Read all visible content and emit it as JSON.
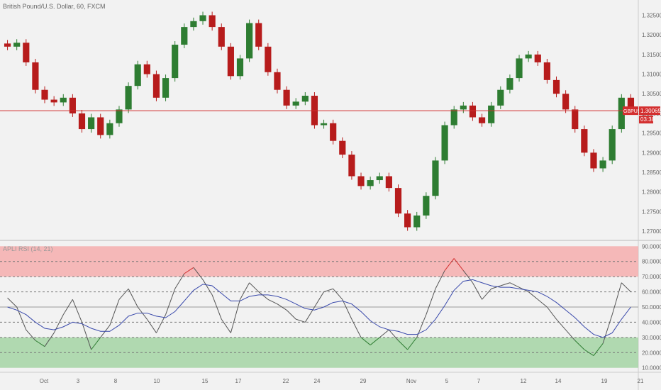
{
  "header": {
    "symbol_title": "British Pound/U.S. Dollar, 60, FXCM"
  },
  "price_tag": {
    "symbol": "GBPUSD",
    "price": "1.30069",
    "countdown": "03:38"
  },
  "rsi_panel": {
    "title": "APLI RSI (14, 21)"
  },
  "colors": {
    "background": "#f2f2f2",
    "up_candle": "#2e7d32",
    "down_candle": "#b71c1c",
    "price_line": "#d32f2f",
    "rsi_line": "#555555",
    "rsi_ma": "#3949ab",
    "overbought_zone": "#f5a9a9",
    "oversold_zone": "#a9d6a9",
    "overbought_line": "#d32f2f",
    "oversold_line": "#2e7d32"
  },
  "chart_data": [
    {
      "type": "line",
      "title": "British Pound/U.S. Dollar, 60, FXCM",
      "xlabel": "",
      "ylabel": "",
      "x_ticks": [
        "Oct",
        "3",
        "8",
        "10",
        "15",
        "17",
        "22",
        "24",
        "29",
        "Nov",
        "5",
        "7",
        "12",
        "14",
        "19",
        "21"
      ],
      "y_ticks": [
        "1.32500",
        "1.32000",
        "1.31500",
        "1.31000",
        "1.30500",
        "1.30000",
        "1.29500",
        "1.29000",
        "1.28500",
        "1.28000",
        "1.27500",
        "1.27000"
      ],
      "ylim": [
        1.2682,
        1.3278
      ],
      "last_price": 1.30069,
      "series": [
        {
          "values": [
            1.317,
            1.318,
            1.313,
            1.306,
            1.3035,
            1.3028,
            1.304,
            1.3,
            1.296,
            1.299,
            1.2945,
            1.2975,
            1.301,
            1.307,
            1.3125,
            1.31,
            1.304,
            1.309,
            1.3175,
            1.322,
            1.3235,
            1.325,
            1.322,
            1.317,
            1.3095,
            1.314,
            1.323,
            1.317,
            1.3105,
            1.306,
            1.302,
            1.303,
            1.3045,
            1.297,
            1.2975,
            1.293,
            1.2895,
            1.284,
            1.2815,
            1.283,
            1.284,
            1.281,
            1.2745,
            1.271,
            1.274,
            1.279,
            1.288,
            1.297,
            1.301,
            1.302,
            1.299,
            1.2975,
            1.302,
            1.306,
            1.309,
            1.314,
            1.315,
            1.313,
            1.3085,
            1.305,
            1.301,
            1.296,
            1.29,
            1.286,
            1.288,
            1.296,
            1.304,
            1.3007
          ]
        }
      ]
    },
    {
      "type": "line",
      "title": "APLI RSI (14, 21)",
      "xlabel": "",
      "ylabel": "",
      "y_ticks": [
        "90.0000",
        "80.0000",
        "70.0000",
        "60.0000",
        "50.0000",
        "40.0000",
        "30.0000",
        "20.0000",
        "10.0000"
      ],
      "ylim": [
        8,
        92
      ],
      "overbought_zone": [
        70,
        90
      ],
      "oversold_zone": [
        10,
        30
      ],
      "levels": [
        80,
        70,
        60,
        50,
        40,
        30,
        20
      ],
      "series": [
        {
          "values": [
            56,
            50,
            35,
            28,
            24,
            33,
            45,
            55,
            40,
            22,
            30,
            38,
            55,
            62,
            50,
            42,
            33,
            45,
            62,
            72,
            76,
            68,
            58,
            42,
            33,
            55,
            66,
            60,
            55,
            52,
            48,
            42,
            40,
            50,
            60,
            62,
            55,
            42,
            30,
            25,
            30,
            35,
            28,
            22,
            30,
            45,
            62,
            74,
            82,
            74,
            66,
            55,
            62,
            64,
            66,
            63,
            60,
            55,
            50,
            42,
            35,
            28,
            22,
            18,
            26,
            45,
            66,
            60
          ]
        },
        {
          "values": [
            50,
            48,
            45,
            40,
            36,
            35,
            37,
            40,
            39,
            36,
            34,
            34,
            38,
            44,
            46,
            46,
            44,
            43,
            47,
            54,
            61,
            65,
            64,
            59,
            54,
            54,
            57,
            58,
            58,
            57,
            55,
            52,
            49,
            48,
            50,
            53,
            54,
            52,
            47,
            41,
            37,
            35,
            34,
            32,
            32,
            35,
            42,
            51,
            61,
            67,
            68,
            66,
            64,
            63,
            63,
            62,
            61,
            60,
            57,
            53,
            48,
            43,
            37,
            32,
            30,
            33,
            42,
            50
          ]
        }
      ]
    }
  ]
}
